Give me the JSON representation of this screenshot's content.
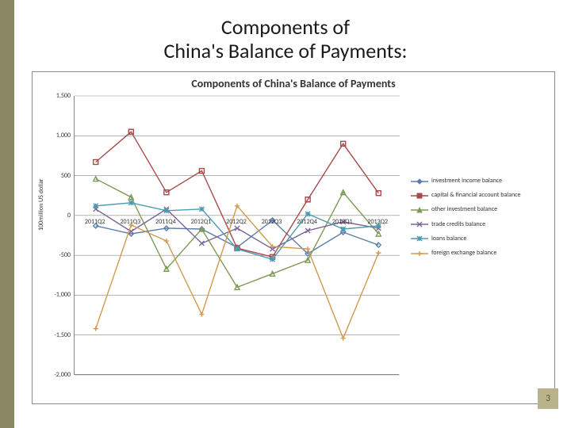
{
  "slide": {
    "title": "Components of\nChina's Balance of Payments:",
    "title_fontsize": 26,
    "page_number": "3",
    "side_bar_color": "#8a8765",
    "page_badge_bg": "#b8b38a",
    "background": "#ffffff"
  },
  "chart": {
    "type": "line",
    "title": "Components of China's Balance of Payments",
    "title_fontsize": 14,
    "title_weight": 700,
    "y_axis_title": "100million US dollar",
    "xlabels": [
      "2011Q2",
      "2011Q3",
      "2011Q4",
      "2012Q1",
      "2012Q2",
      "2012Q3",
      "2012Q4",
      "2013Q1",
      "2013Q2"
    ],
    "ylim": [
      -2000,
      1500
    ],
    "ytick_step": 500,
    "yticks": [
      "1,500",
      "1,000",
      "500",
      "0",
      "-500",
      "-1,000",
      "-1,500",
      "-2,000"
    ],
    "grid_color": "#888888",
    "label_fontsize": 8,
    "series": [
      {
        "name": "investment income balance",
        "color": "#5b7ea8",
        "marker": "diamond",
        "values": [
          -130,
          -230,
          -160,
          -170,
          -400,
          -60,
          -480,
          -210,
          -370
        ]
      },
      {
        "name": "capital & financial account balance",
        "color": "#a94a4a",
        "marker": "square",
        "values": [
          670,
          1050,
          290,
          560,
          -410,
          -520,
          200,
          900,
          280
        ]
      },
      {
        "name": "other investment balance",
        "color": "#7f9a56",
        "marker": "triangle",
        "values": [
          460,
          230,
          -670,
          -170,
          -900,
          -730,
          -560,
          290,
          -230
        ]
      },
      {
        "name": "trade credits balance",
        "color": "#7a6398",
        "marker": "cross",
        "values": [
          80,
          -200,
          80,
          -350,
          -160,
          -420,
          -190,
          -80,
          -160
        ]
      },
      {
        "name": "loans balance",
        "color": "#4a9bb3",
        "marker": "star",
        "values": [
          120,
          160,
          60,
          80,
          -420,
          -550,
          20,
          -170,
          -130
        ]
      },
      {
        "name": "foreign exchange balance",
        "color": "#d19a4a",
        "marker": "plus",
        "values": [
          -1420,
          -120,
          -320,
          -1240,
          120,
          -390,
          -420,
          -1540,
          -470
        ]
      }
    ]
  }
}
